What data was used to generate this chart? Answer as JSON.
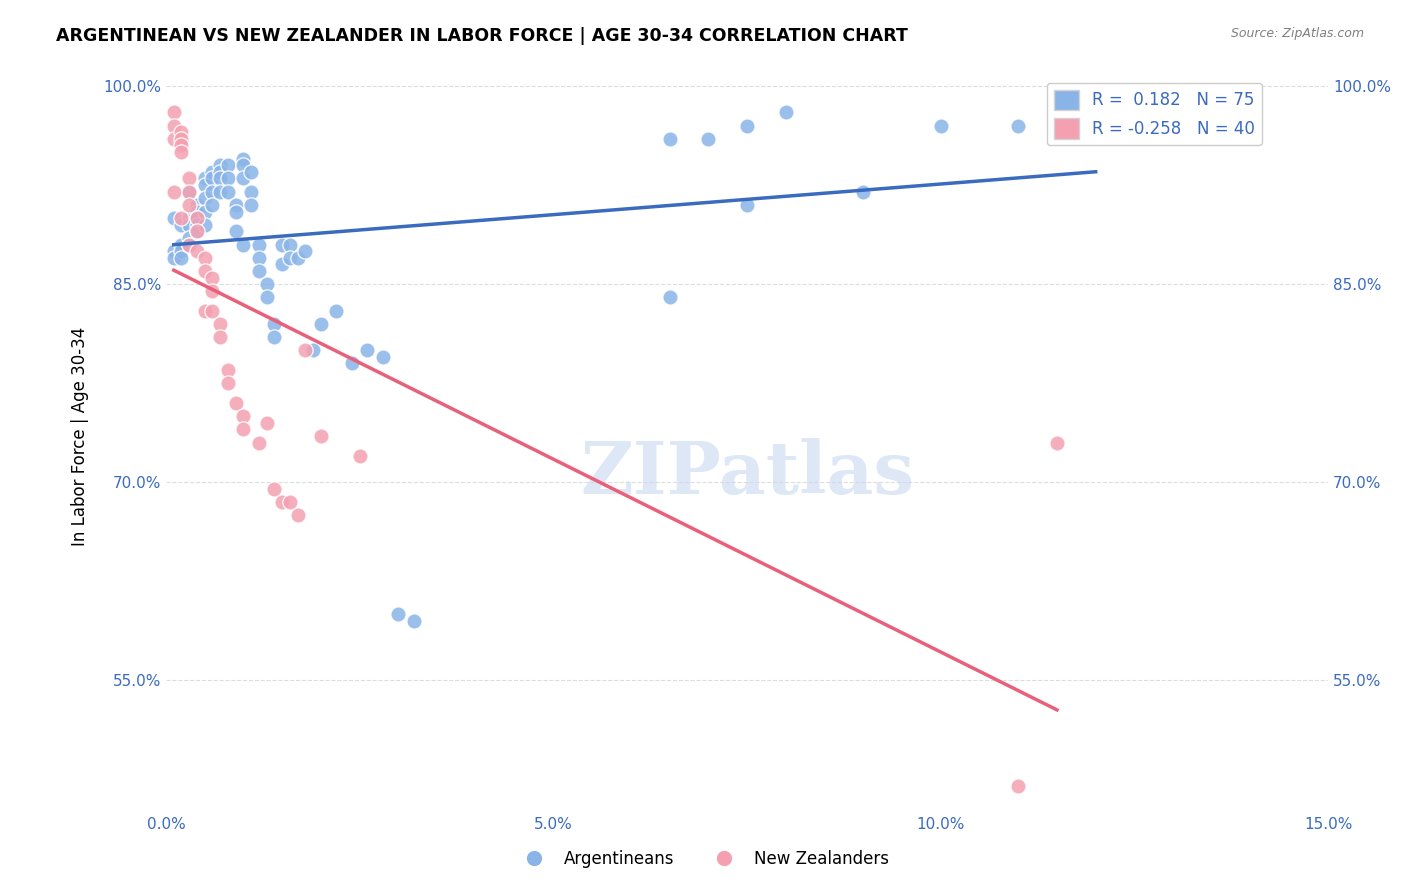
{
  "title": "ARGENTINEAN VS NEW ZEALANDER IN LABOR FORCE | AGE 30-34 CORRELATION CHART",
  "source": "Source: ZipAtlas.com",
  "xlabel": "",
  "ylabel": "In Labor Force | Age 30-34",
  "xlim": [
    0.0,
    0.15
  ],
  "ylim": [
    0.45,
    1.02
  ],
  "yticks": [
    0.55,
    0.7,
    0.85,
    1.0
  ],
  "ytick_labels": [
    "55.0%",
    "70.0%",
    "85.0%",
    "100.0%"
  ],
  "xticks": [
    0.0,
    0.05,
    0.1,
    0.15
  ],
  "xtick_labels": [
    "0.0%",
    "5.0%",
    "10.0%",
    "15.0%"
  ],
  "legend_r_blue": "0.182",
  "legend_n_blue": "75",
  "legend_r_pink": "-0.258",
  "legend_n_pink": "40",
  "blue_color": "#8ab4e8",
  "pink_color": "#f4a0b0",
  "blue_line_color": "#3a6bbf",
  "pink_line_color": "#e8607a",
  "watermark": "ZIPatlas",
  "watermark_color": "#c8d8f0",
  "blue_x": [
    0.001,
    0.001,
    0.001,
    0.002,
    0.002,
    0.002,
    0.002,
    0.003,
    0.003,
    0.003,
    0.003,
    0.003,
    0.004,
    0.004,
    0.004,
    0.004,
    0.004,
    0.005,
    0.005,
    0.005,
    0.005,
    0.005,
    0.006,
    0.006,
    0.006,
    0.006,
    0.007,
    0.007,
    0.007,
    0.007,
    0.008,
    0.008,
    0.008,
    0.009,
    0.009,
    0.009,
    0.01,
    0.01,
    0.01,
    0.01,
    0.011,
    0.011,
    0.011,
    0.012,
    0.012,
    0.012,
    0.013,
    0.013,
    0.014,
    0.014,
    0.015,
    0.015,
    0.016,
    0.016,
    0.017,
    0.018,
    0.019,
    0.02,
    0.022,
    0.024,
    0.026,
    0.028,
    0.03,
    0.032,
    0.065,
    0.075,
    0.08,
    0.09,
    0.1,
    0.11,
    0.118,
    0.12,
    0.065,
    0.07,
    0.075
  ],
  "blue_y": [
    0.9,
    0.875,
    0.87,
    0.895,
    0.88,
    0.875,
    0.87,
    0.92,
    0.9,
    0.895,
    0.885,
    0.88,
    0.91,
    0.905,
    0.9,
    0.895,
    0.89,
    0.93,
    0.925,
    0.915,
    0.905,
    0.895,
    0.935,
    0.93,
    0.92,
    0.91,
    0.94,
    0.935,
    0.93,
    0.92,
    0.94,
    0.93,
    0.92,
    0.91,
    0.905,
    0.89,
    0.945,
    0.94,
    0.93,
    0.88,
    0.935,
    0.92,
    0.91,
    0.88,
    0.87,
    0.86,
    0.85,
    0.84,
    0.82,
    0.81,
    0.88,
    0.865,
    0.88,
    0.87,
    0.87,
    0.875,
    0.8,
    0.82,
    0.83,
    0.79,
    0.8,
    0.795,
    0.6,
    0.595,
    0.84,
    0.97,
    0.98,
    0.92,
    0.97,
    0.97,
    0.965,
    0.965,
    0.96,
    0.96,
    0.91
  ],
  "pink_x": [
    0.001,
    0.001,
    0.001,
    0.001,
    0.002,
    0.002,
    0.002,
    0.002,
    0.002,
    0.003,
    0.003,
    0.003,
    0.003,
    0.004,
    0.004,
    0.004,
    0.005,
    0.005,
    0.005,
    0.006,
    0.006,
    0.006,
    0.007,
    0.007,
    0.008,
    0.008,
    0.009,
    0.01,
    0.01,
    0.012,
    0.013,
    0.014,
    0.015,
    0.016,
    0.017,
    0.018,
    0.02,
    0.025,
    0.11,
    0.115
  ],
  "pink_y": [
    0.98,
    0.97,
    0.96,
    0.92,
    0.965,
    0.96,
    0.955,
    0.95,
    0.9,
    0.93,
    0.92,
    0.91,
    0.88,
    0.9,
    0.89,
    0.875,
    0.87,
    0.86,
    0.83,
    0.855,
    0.845,
    0.83,
    0.82,
    0.81,
    0.785,
    0.775,
    0.76,
    0.75,
    0.74,
    0.73,
    0.745,
    0.695,
    0.685,
    0.685,
    0.675,
    0.8,
    0.735,
    0.72,
    0.47,
    0.73
  ],
  "background_color": "#ffffff",
  "grid_color": "#dddddd"
}
